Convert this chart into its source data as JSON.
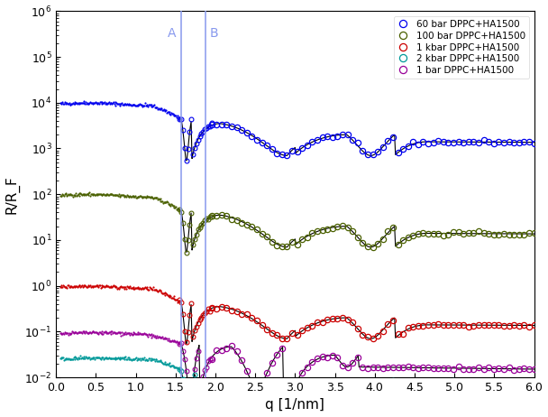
{
  "xlabel": "q [1/nm]",
  "ylabel": "R/R_F",
  "xlim": [
    0,
    6
  ],
  "vline_A": 1.57,
  "vline_B": 1.87,
  "vline_color": "#8899ee",
  "legend_labels": [
    "60 bar DPPC+HA1500",
    "100 bar DPPC+HA1500",
    "1 kbar DPPC+HA1500",
    "2 kbar DPPC+HA1500",
    "1 bar DPPC+HA1500"
  ],
  "colors": [
    "#0000ee",
    "#4a6000",
    "#cc0000",
    "#009999",
    "#990099"
  ],
  "scales": [
    10000.0,
    100.0,
    1.0,
    0.028,
    0.085
  ],
  "bg_color": "#ffffff"
}
